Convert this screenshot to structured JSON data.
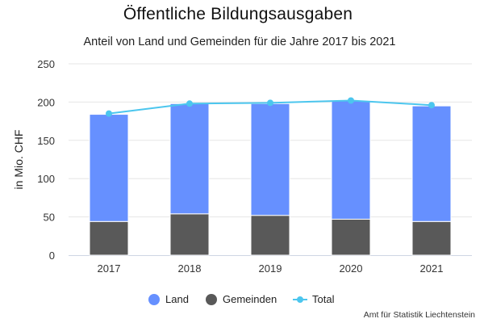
{
  "title": "Öffentliche Bildungsausgaben",
  "subtitle": "Anteil von Land und Gemeinden für die Jahre 2017 bis 2021",
  "credit": "Amt für Statistik Liechtenstein",
  "colors": {
    "land": "#6690ff",
    "gemeinden": "#595959",
    "total": "#4cc6ee",
    "grid": "#e6e6e6",
    "axis": "#cfd6e3"
  },
  "chart_data": {
    "type": "bar",
    "stacked": true,
    "categories": [
      "2017",
      "2018",
      "2019",
      "2020",
      "2021"
    ],
    "series": [
      {
        "name": "Gemeinden",
        "type": "bar",
        "values": [
          44,
          54,
          52,
          47,
          44
        ]
      },
      {
        "name": "Land",
        "type": "bar",
        "values": [
          140,
          144,
          146,
          155,
          151
        ]
      },
      {
        "name": "Total",
        "type": "line",
        "values": [
          185,
          198,
          199,
          202,
          196
        ]
      }
    ],
    "ylabel": "in Mio. CHF",
    "xlabel": "",
    "ylim": [
      0,
      250
    ],
    "yticks": [
      0,
      50,
      100,
      150,
      200,
      250
    ],
    "grid": true,
    "legend": [
      "Land",
      "Gemeinden",
      "Total"
    ],
    "legend_position": "bottom"
  }
}
